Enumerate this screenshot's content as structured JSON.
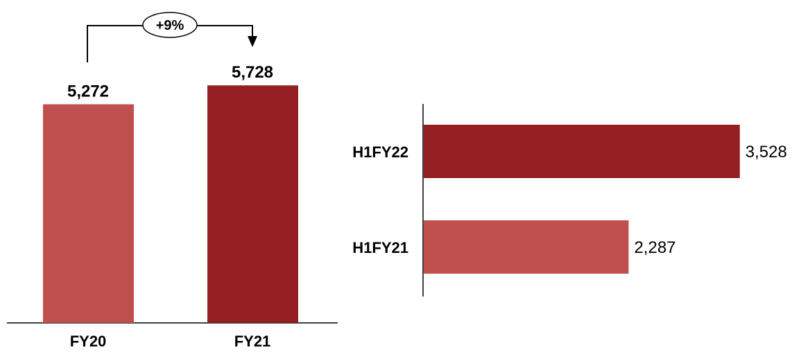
{
  "chart_data": [
    {
      "type": "bar",
      "orientation": "vertical",
      "categories": [
        "FY20",
        "FY21"
      ],
      "values": [
        5272,
        5728
      ],
      "value_labels": [
        "5,272",
        "5,728"
      ],
      "colors": [
        "#c0504d",
        "#941e21"
      ],
      "ylim": [
        0,
        6500
      ],
      "annotation": {
        "text": "+9%",
        "from": "FY20",
        "to": "FY21"
      },
      "grid": false,
      "legend": "none"
    },
    {
      "type": "bar",
      "orientation": "horizontal",
      "categories": [
        "H1FY22",
        "H1FY21"
      ],
      "values": [
        3528,
        2287
      ],
      "value_labels": [
        "3,528",
        "2,287"
      ],
      "colors": [
        "#941e21",
        "#c0504d"
      ],
      "xlim": [
        0,
        3700
      ],
      "grid": false,
      "legend": "none"
    }
  ]
}
